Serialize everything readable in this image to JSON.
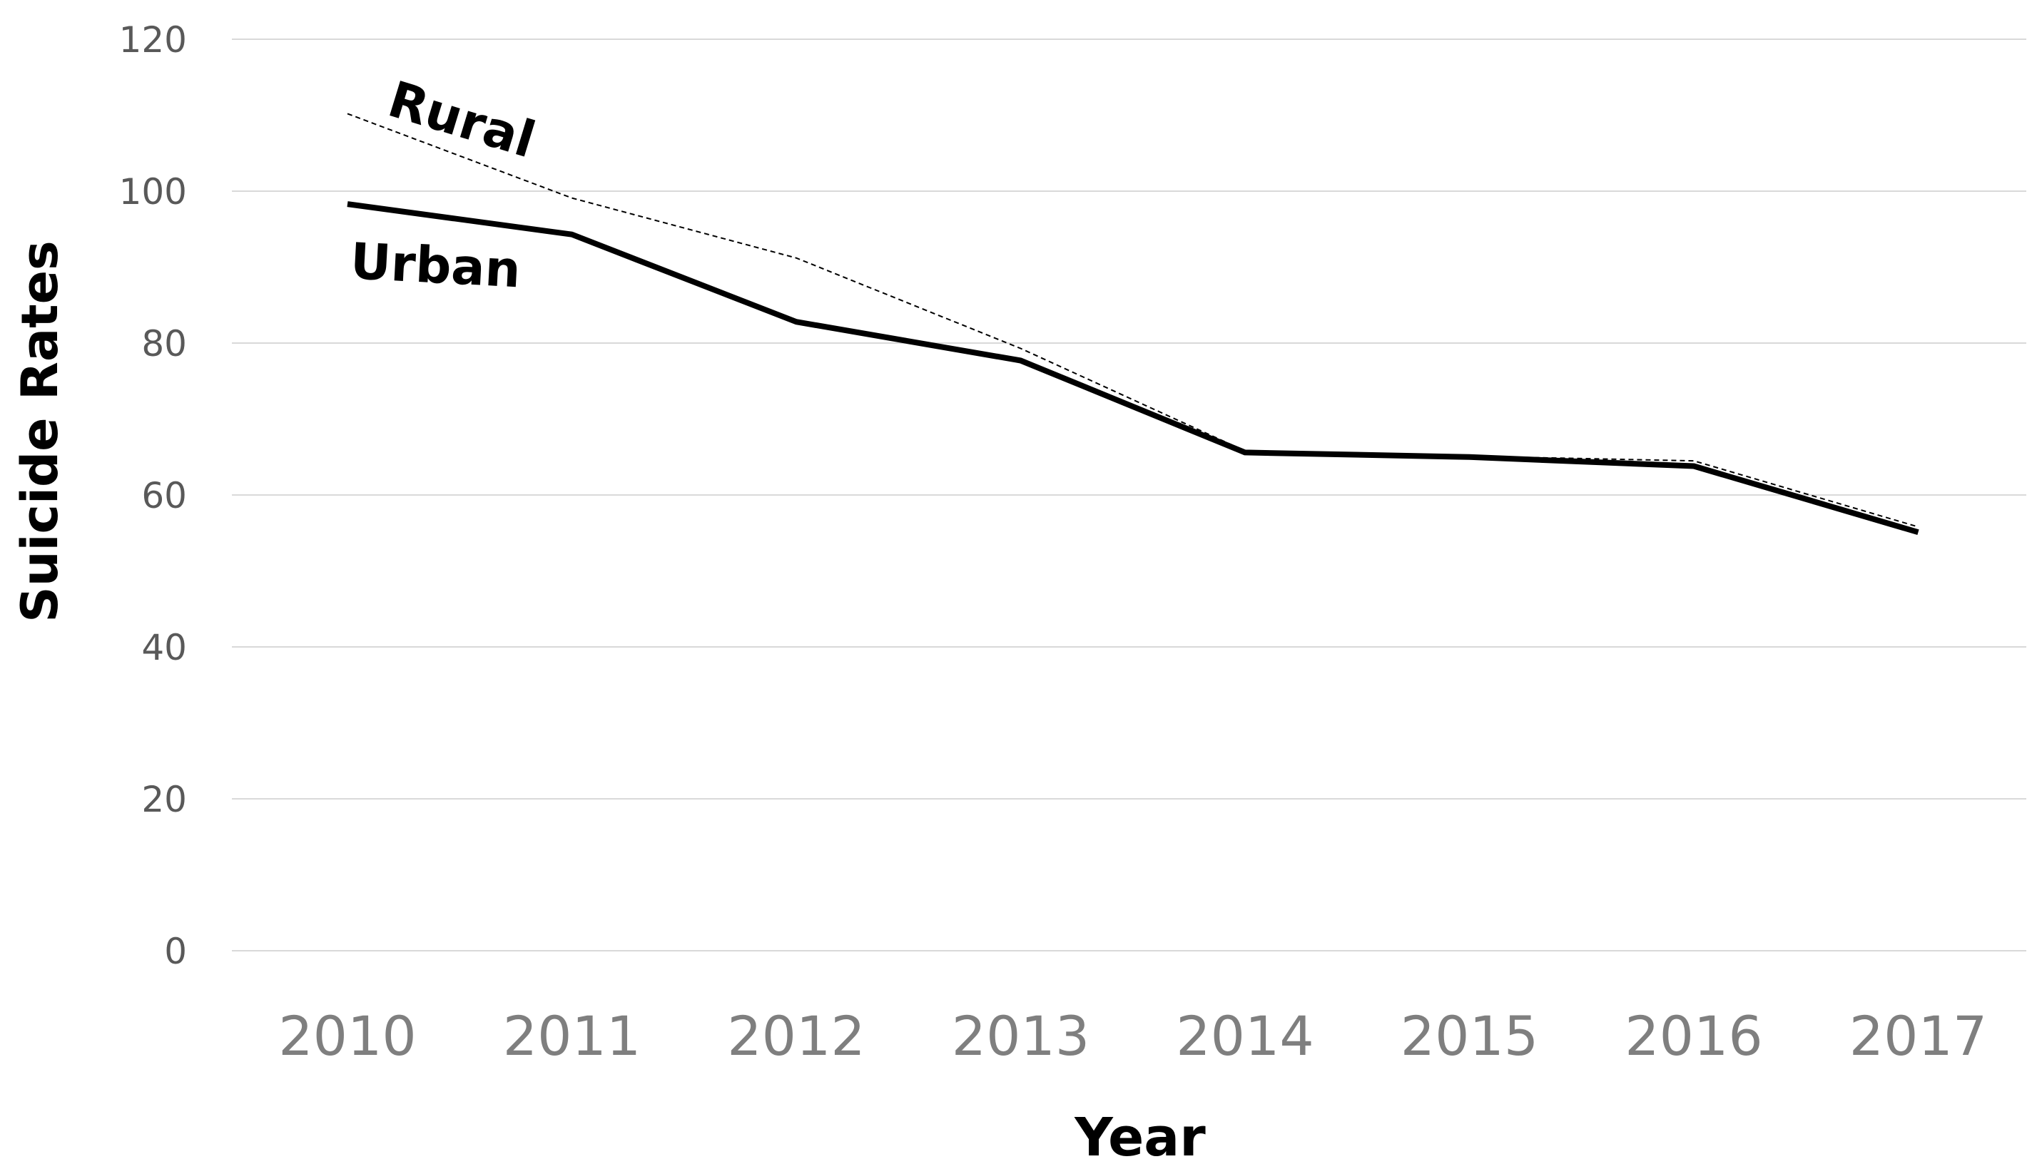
{
  "chart_data": {
    "type": "line",
    "title": "",
    "xlabel": "Year",
    "ylabel": "Suicide  Rates",
    "categories": [
      "2010",
      "2011",
      "2012",
      "2013",
      "2014",
      "2015",
      "2016",
      "2017"
    ],
    "yticks": [
      "0",
      "20",
      "40",
      "60",
      "80",
      "100",
      "120"
    ],
    "ylim": [
      0,
      120
    ],
    "grid": true,
    "legend": "none",
    "series": [
      {
        "name": "Rural",
        "style": "dashed",
        "color": "#000000",
        "values": [
          110.2,
          99.1,
          91.2,
          79.3,
          65.8,
          65.1,
          64.5,
          55.8
        ]
      },
      {
        "name": "Urban",
        "style": "solid",
        "color": "#000000",
        "values": [
          98.3,
          94.3,
          82.8,
          77.7,
          65.6,
          65.0,
          63.8,
          55.1
        ]
      }
    ]
  }
}
